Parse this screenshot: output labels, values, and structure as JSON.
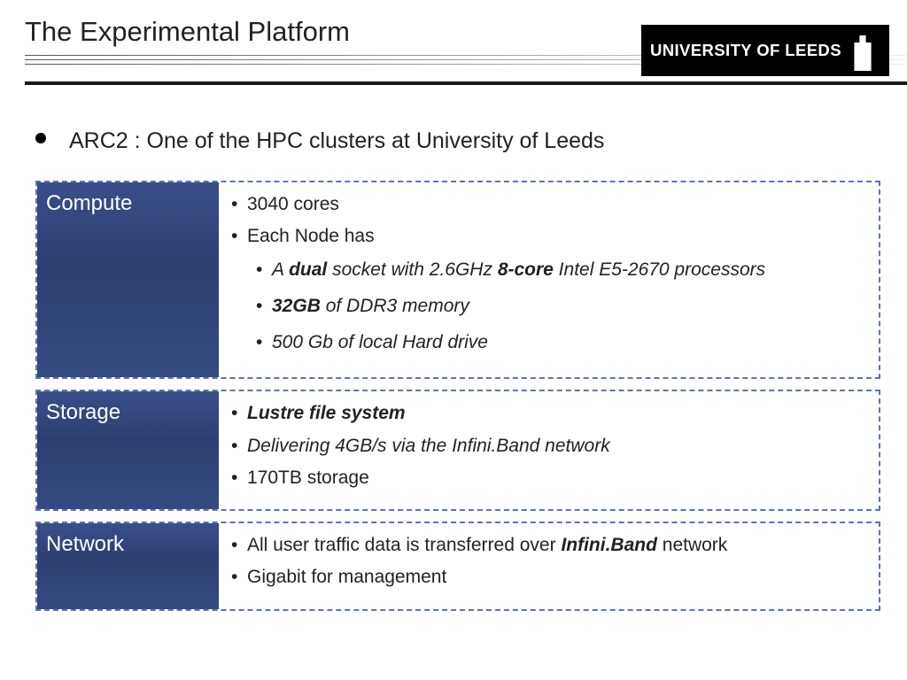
{
  "title": "The Experimental Platform",
  "logo_text": "UNIVERSITY OF LEEDS",
  "bullet_intro": "ARC2 : One of the HPC clusters at University of Leeds",
  "colors": {
    "border_dashed": "#5b74b8",
    "label_bg_top": "#3a4e8a",
    "label_bg_bottom": "#344a80",
    "logo_bg": "#000000",
    "text": "#222222"
  },
  "sections": [
    {
      "label": "Compute",
      "items": [
        {
          "level": 1,
          "html": "3040 cores"
        },
        {
          "level": 1,
          "html": "Each Node has"
        },
        {
          "level": 2,
          "html": "<span class='i'>A </span><span class='i b'>dual</span><span class='i'> socket with 2.6GHz </span><span class='i b'>8-core</span><span class='i'> Intel E5-2670 processors</span>"
        },
        {
          "level": 2,
          "html": "<span class='i b'>32GB</span><span class='i'> of DDR3 memory</span>"
        },
        {
          "level": 2,
          "html": "<span class='i'>500 Gb of local Hard drive</span>"
        }
      ]
    },
    {
      "label": "Storage",
      "items": [
        {
          "level": 1,
          "html": "<span class='i b'>Lustre file system</span>"
        },
        {
          "level": 1,
          "html": "<span class='i'>Delivering 4GB/s via the Infini.Band network</span>"
        },
        {
          "level": 1,
          "html": "170TB  storage"
        }
      ]
    },
    {
      "label": "Network",
      "items": [
        {
          "level": 1,
          "html": "All user traffic data is transferred over <span class='i b'>Infini.Band</span> network"
        },
        {
          "level": 1,
          "html": "Gigabit for management"
        }
      ]
    }
  ]
}
